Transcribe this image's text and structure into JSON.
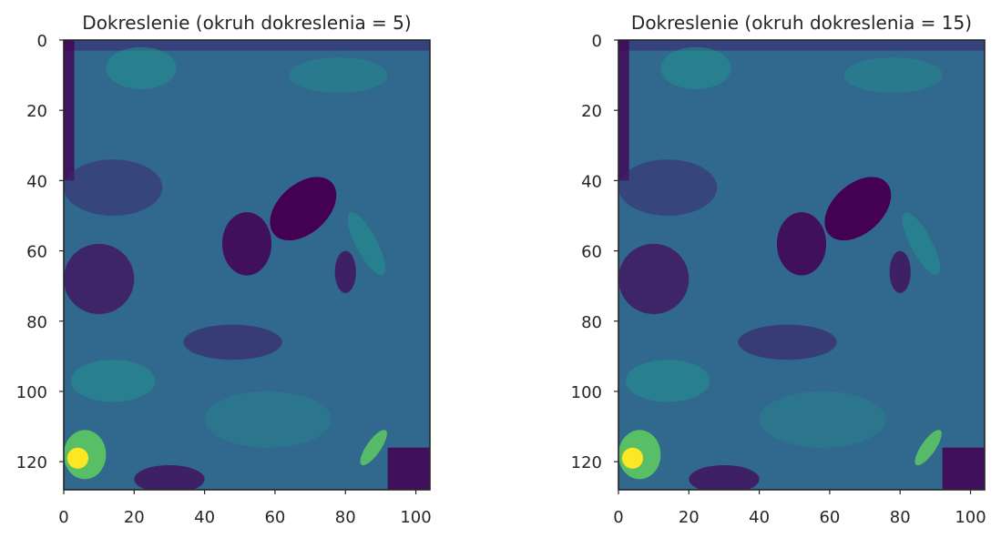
{
  "chart_data": [
    {
      "type": "heatmap",
      "title": "Dokreslenie (okruh dokreslenia = 5)",
      "xlabel": "",
      "ylabel": "",
      "xlim": [
        0,
        104
      ],
      "ylim": [
        128,
        0
      ],
      "x_ticks": [
        "0",
        "20",
        "40",
        "60",
        "80",
        "100"
      ],
      "x_tick_values": [
        0,
        20,
        40,
        60,
        80,
        100
      ],
      "y_ticks": [
        "0",
        "20",
        "40",
        "60",
        "80",
        "100",
        "120"
      ],
      "y_tick_values": [
        0,
        20,
        40,
        60,
        80,
        100,
        120
      ],
      "colormap": "viridis",
      "grid": false
    },
    {
      "type": "heatmap",
      "title": "Dokreslenie (okruh dokreslenia = 15)",
      "xlabel": "",
      "ylabel": "",
      "xlim": [
        0,
        104
      ],
      "ylim": [
        128,
        0
      ],
      "x_ticks": [
        "0",
        "20",
        "40",
        "60",
        "80",
        "100"
      ],
      "x_tick_values": [
        0,
        20,
        40,
        60,
        80,
        100
      ],
      "y_ticks": [
        "0",
        "20",
        "40",
        "60",
        "80",
        "100",
        "120"
      ],
      "y_tick_values": [
        0,
        20,
        40,
        60,
        80,
        100,
        120
      ],
      "colormap": "viridis",
      "grid": false
    }
  ],
  "colors": {
    "background": "#ffffff",
    "axis": "#262626",
    "viridis_low": "#440154",
    "viridis_dark": "#3b2a6e",
    "viridis_mid": "#31688e",
    "viridis_teal": "#21918c",
    "viridis_green": "#5ec962",
    "viridis_high": "#fde725"
  }
}
